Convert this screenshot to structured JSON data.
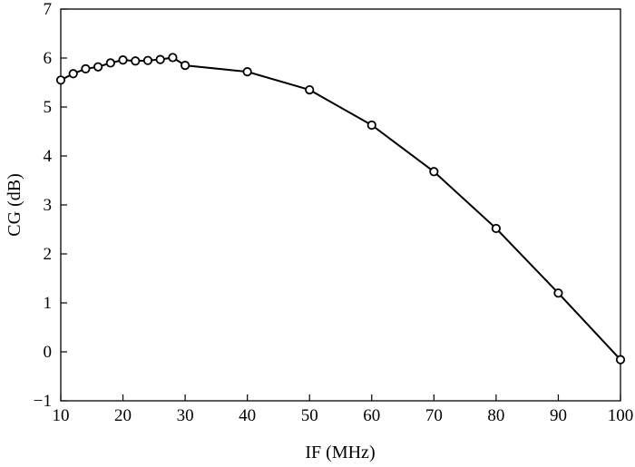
{
  "chart_data": {
    "type": "line",
    "xlabel": "IF (MHz)",
    "ylabel": "CG (dB)",
    "xlim": [
      10,
      100
    ],
    "ylim": [
      -1,
      7
    ],
    "x_ticks": [
      10,
      20,
      30,
      40,
      50,
      60,
      70,
      80,
      90,
      100
    ],
    "y_ticks": [
      -1,
      0,
      1,
      2,
      3,
      4,
      5,
      6,
      7
    ],
    "y_tick_labels": [
      "−1",
      "0",
      "1",
      "2",
      "3",
      "4",
      "5",
      "6",
      "7"
    ],
    "grid": false,
    "series": [
      {
        "marker": "open-circle",
        "color": "#000000",
        "x": [
          10,
          12,
          14,
          16,
          18,
          20,
          22,
          24,
          26,
          28,
          30,
          40,
          50,
          60,
          70,
          80,
          90,
          100
        ],
        "y": [
          5.55,
          5.68,
          5.78,
          5.82,
          5.9,
          5.96,
          5.94,
          5.95,
          5.97,
          6.01,
          5.85,
          5.72,
          5.35,
          4.63,
          3.68,
          2.52,
          1.2,
          -0.16
        ]
      }
    ]
  }
}
